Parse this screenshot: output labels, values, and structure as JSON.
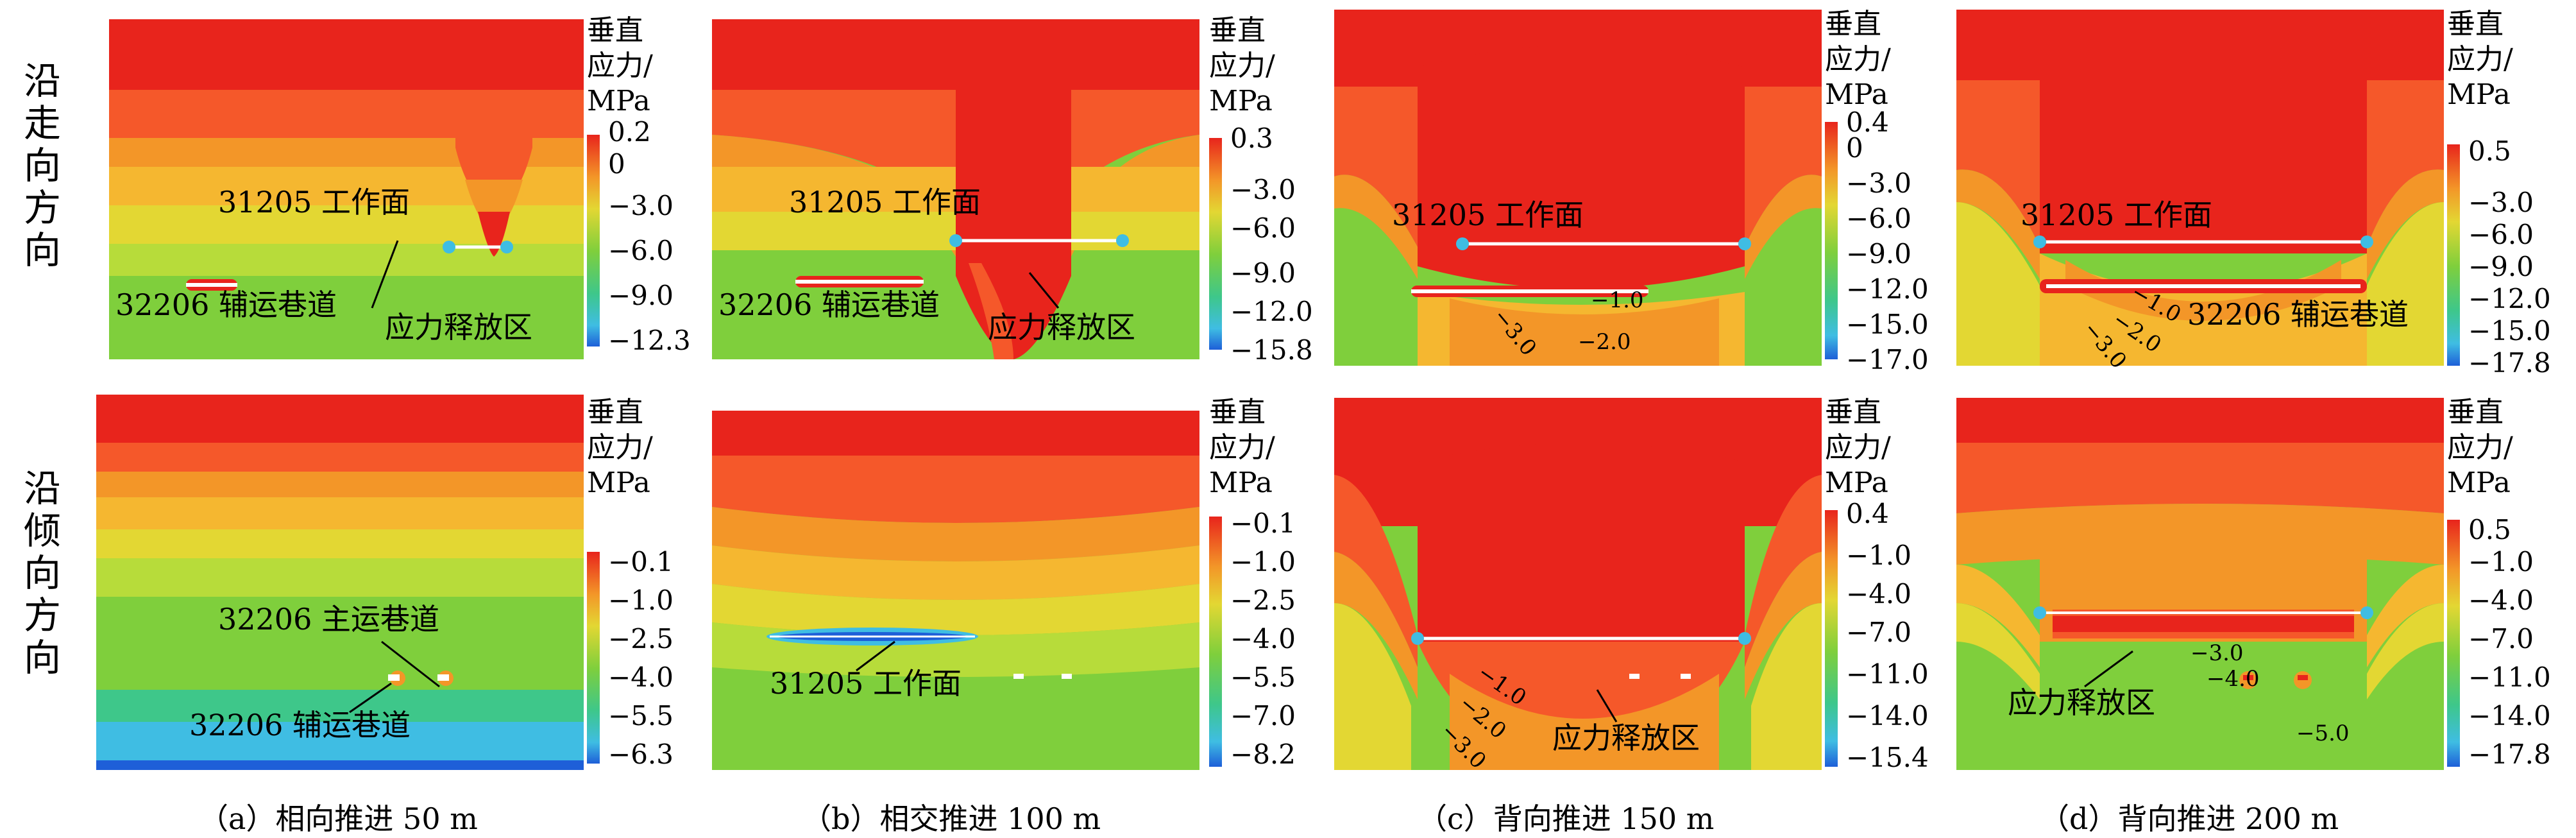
{
  "row_labels": [
    "沿走向方向",
    "沿倾向方向"
  ],
  "colorbar_title": [
    "垂直",
    "应力/",
    "MPa"
  ],
  "captions": [
    "（a）相向推进 50 m",
    "（b）相交推进 100 m",
    "（c）背向推进 150 m",
    "（d）背向推进 200 m"
  ],
  "colors": {
    "c1": "#e8241c",
    "c2": "#f5582a",
    "c3": "#f39628",
    "c4": "#f5b730",
    "c5": "#e3d733",
    "c6": "#b7dc3a",
    "c7": "#7fcf3c",
    "c8": "#3ec78a",
    "c9": "#3fbde3",
    "c10": "#1e5fd8"
  },
  "panels": [
    {
      "id": "a",
      "top": {
        "ticks": [
          "0.2",
          "0",
          "−3.0",
          "−6.0",
          "−9.0",
          "−12.3"
        ],
        "labels": [
          "31205 工作面",
          "32206 辅运巷道",
          "应力释放区"
        ],
        "contours": []
      },
      "bottom": {
        "ticks": [
          "−0.1",
          "−1.0",
          "−2.5",
          "−4.0",
          "−5.5",
          "−6.3"
        ],
        "labels": [
          "32206 主运巷道",
          "32206 辅运巷道"
        ],
        "contours": []
      }
    },
    {
      "id": "b",
      "top": {
        "ticks": [
          "0.3",
          "−3.0",
          "−6.0",
          "−9.0",
          "−12.0",
          "−15.8"
        ],
        "labels": [
          "31205 工作面",
          "32206 辅运巷道",
          "应力释放区"
        ],
        "contours": []
      },
      "bottom": {
        "ticks": [
          "−0.1",
          "−1.0",
          "−2.5",
          "−4.0",
          "−5.5",
          "−7.0",
          "−8.2"
        ],
        "labels": [
          "31205 工作面"
        ],
        "contours": []
      }
    },
    {
      "id": "c",
      "top": {
        "ticks": [
          "0.4",
          "0",
          "−3.0",
          "−6.0",
          "−9.0",
          "−12.0",
          "−15.0",
          "−17.0"
        ],
        "labels": [
          "31205 工作面"
        ],
        "contours": [
          "−1.0",
          "−2.0",
          "−3.0"
        ]
      },
      "bottom": {
        "ticks": [
          "0.4",
          "−1.0",
          "−4.0",
          "−7.0",
          "−11.0",
          "−14.0",
          "−15.4"
        ],
        "labels": [
          "应力释放区"
        ],
        "contours": [
          "−1.0",
          "−2.0",
          "−3.0"
        ]
      }
    },
    {
      "id": "d",
      "top": {
        "ticks": [
          "0.5",
          "−3.0",
          "−6.0",
          "−9.0",
          "−12.0",
          "−15.0",
          "−17.8"
        ],
        "labels": [
          "31205 工作面",
          "32206 辅运巷道"
        ],
        "contours": [
          "−1.0",
          "−2.0",
          "−3.0"
        ]
      },
      "bottom": {
        "ticks": [
          "0.5",
          "−1.0",
          "−4.0",
          "−7.0",
          "−11.0",
          "−14.0",
          "−17.8"
        ],
        "labels": [
          "应力释放区"
        ],
        "contours": [
          "−3.0",
          "−4.0",
          "−5.0"
        ]
      }
    }
  ]
}
